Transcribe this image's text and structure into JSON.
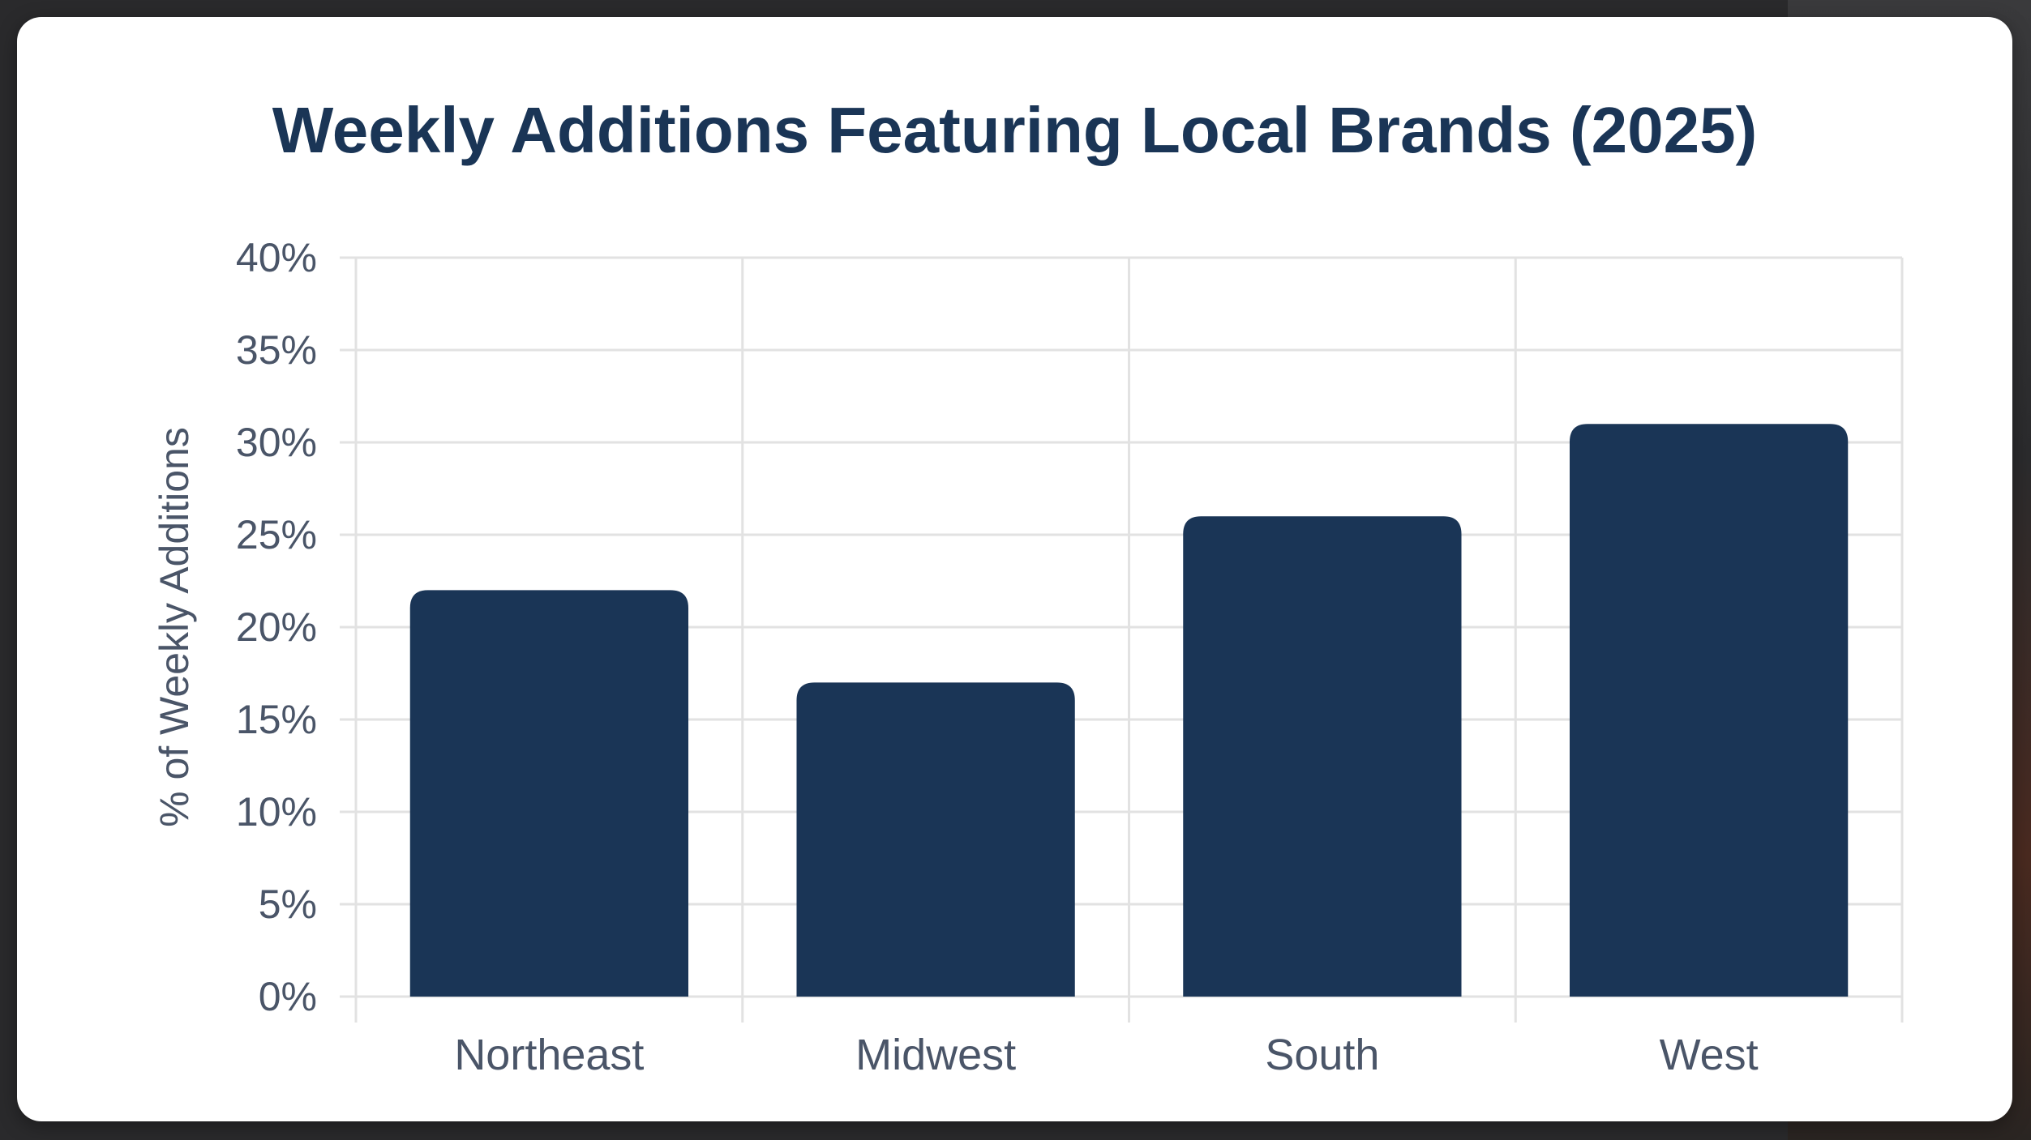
{
  "chart_data": {
    "type": "bar",
    "title": "Weekly Additions Featuring Local Brands (2025)",
    "xlabel": "",
    "ylabel": "% of Weekly Additions",
    "categories": [
      "Northeast",
      "Midwest",
      "South",
      "West"
    ],
    "values": [
      22,
      17,
      26,
      31
    ],
    "ylim": [
      0,
      40
    ],
    "yticks": [
      0,
      5,
      10,
      15,
      20,
      25,
      30,
      35,
      40
    ],
    "ytick_suffix": "%",
    "grid": true,
    "bar_color": "#1a3556",
    "grid_color": "#e2e2e2"
  }
}
